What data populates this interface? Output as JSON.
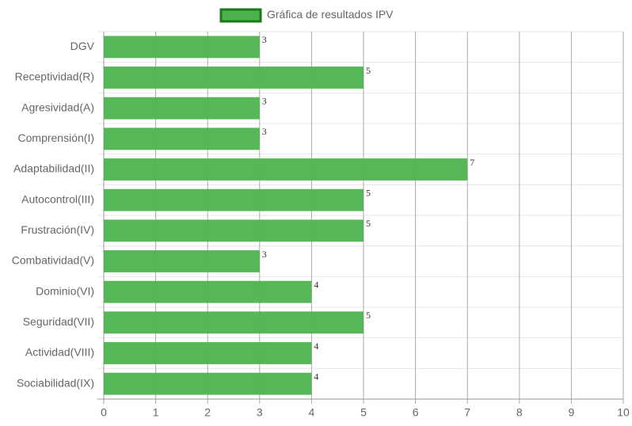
{
  "chart_data": {
    "type": "bar",
    "orientation": "horizontal",
    "categories": [
      "DGV",
      "Receptividad(R)",
      "Agresividad(A)",
      "Comprensión(I)",
      "Adaptabilidad(II)",
      "Autocontrol(III)",
      "Frustración(IV)",
      "Combatividad(V)",
      "Dominio(VI)",
      "Seguridad(VII)",
      "Actividad(VIII)",
      "Sociabilidad(IX)"
    ],
    "series": [
      {
        "name": "Gráfica de resultados IPV",
        "color": "#4cb34c",
        "border_color": "#1a7a1a",
        "values": [
          3,
          5,
          3,
          3,
          7,
          5,
          5,
          3,
          4,
          5,
          4,
          4
        ]
      }
    ],
    "xlim": [
      0,
      10
    ],
    "xticks": [
      0,
      1,
      2,
      3,
      4,
      5,
      6,
      7,
      8,
      9,
      10
    ],
    "grid": true,
    "legend": "top"
  }
}
